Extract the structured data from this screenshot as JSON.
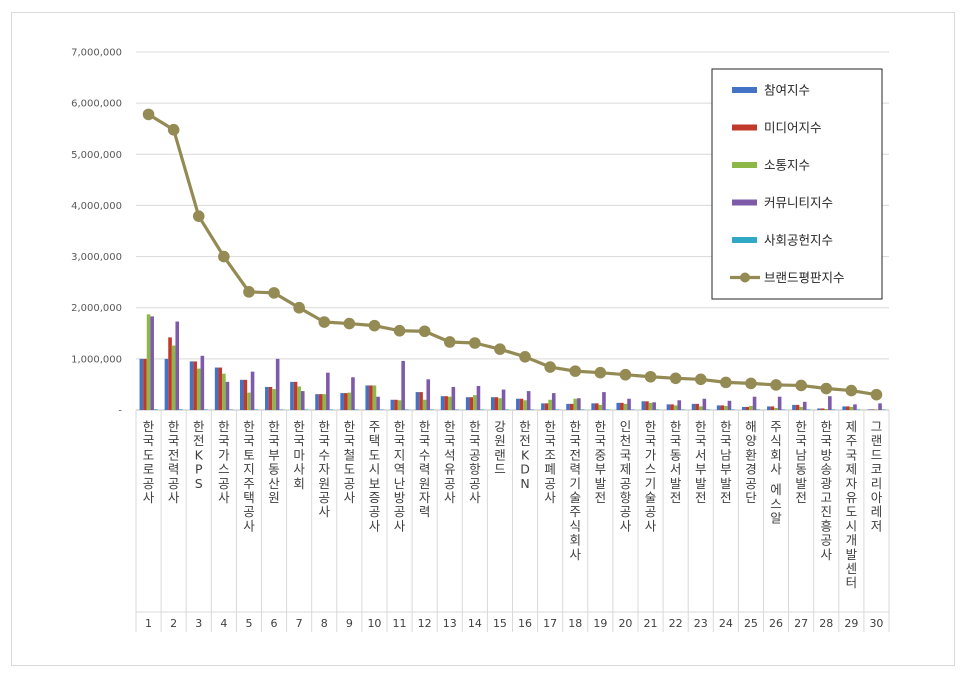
{
  "chart_data": {
    "type": "bar",
    "title": "",
    "xlabel": "",
    "ylabel": "",
    "ylim": [
      0,
      7000000
    ],
    "yticks": [
      "-",
      "1,000,000",
      "2,000,000",
      "3,000,000",
      "4,000,000",
      "5,000,000",
      "6,000,000",
      "7,000,000"
    ],
    "ytick_values": [
      0,
      1000000,
      2000000,
      3000000,
      4000000,
      5000000,
      6000000,
      7000000
    ],
    "grid": true,
    "legend_position": "top-right",
    "ranks": [
      "1",
      "2",
      "3",
      "4",
      "5",
      "6",
      "7",
      "8",
      "9",
      "10",
      "11",
      "12",
      "13",
      "14",
      "15",
      "16",
      "17",
      "18",
      "19",
      "20",
      "21",
      "22",
      "23",
      "24",
      "25",
      "26",
      "27",
      "28",
      "29",
      "30"
    ],
    "categories": [
      "한국도로공사",
      "한국전력공사",
      "한전KPS",
      "한국가스공사",
      "한국토지주택공사",
      "한국부동산원",
      "한국마사회",
      "한국수자원공사",
      "한국철도공사",
      "주택도시보증공사",
      "한국지역난방공사",
      "한국수력원자력",
      "한국석유공사",
      "한국공항공사",
      "강원랜드",
      "한전KDN",
      "한국조폐공사",
      "한국전력기술주식회사",
      "한국중부발전",
      "인천국제공항공사",
      "한국가스기술공사",
      "한국동서발전",
      "한국서부발전",
      "한국남부발전",
      "해양환경공단",
      "주식회사 에스알",
      "한국남동발전",
      "한국방송광고진흥공사",
      "제주국제자유도시개발센터",
      "그랜드코리아레저"
    ],
    "series": [
      {
        "name": "참여지수",
        "kind": "bar",
        "color": "#4472c4",
        "values": [
          1000000,
          1000000,
          950000,
          830000,
          590000,
          450000,
          550000,
          310000,
          330000,
          480000,
          200000,
          350000,
          270000,
          250000,
          250000,
          220000,
          130000,
          120000,
          130000,
          140000,
          170000,
          110000,
          120000,
          90000,
          60000,
          70000,
          100000,
          30000,
          70000,
          10000
        ]
      },
      {
        "name": "미디어지수",
        "kind": "bar",
        "color": "#c0392b",
        "values": [
          1000000,
          1420000,
          950000,
          830000,
          590000,
          450000,
          550000,
          310000,
          330000,
          480000,
          200000,
          350000,
          270000,
          250000,
          250000,
          220000,
          130000,
          120000,
          130000,
          140000,
          170000,
          110000,
          120000,
          90000,
          60000,
          70000,
          100000,
          30000,
          70000,
          10000
        ]
      },
      {
        "name": "소통지수",
        "kind": "bar",
        "color": "#8db848",
        "values": [
          1870000,
          1260000,
          810000,
          710000,
          340000,
          410000,
          460000,
          310000,
          340000,
          480000,
          190000,
          200000,
          260000,
          290000,
          230000,
          190000,
          200000,
          220000,
          100000,
          120000,
          140000,
          90000,
          70000,
          80000,
          80000,
          40000,
          60000,
          20000,
          60000,
          10000
        ]
      },
      {
        "name": "커뮤니티지수",
        "kind": "bar",
        "color": "#7e5ba8",
        "values": [
          1830000,
          1730000,
          1060000,
          550000,
          750000,
          1000000,
          370000,
          730000,
          640000,
          260000,
          960000,
          600000,
          450000,
          470000,
          400000,
          370000,
          330000,
          230000,
          350000,
          220000,
          150000,
          190000,
          220000,
          180000,
          260000,
          260000,
          160000,
          270000,
          110000,
          130000
        ]
      },
      {
        "name": "사회공헌지수",
        "kind": "bar",
        "color": "#31a9c6",
        "values": [
          15000,
          15000,
          12000,
          10000,
          12000,
          10000,
          10000,
          10000,
          10000,
          10000,
          10000,
          10000,
          10000,
          10000,
          10000,
          8000,
          8000,
          8000,
          8000,
          8000,
          8000,
          8000,
          8000,
          8000,
          8000,
          8000,
          8000,
          8000,
          8000,
          8000
        ]
      },
      {
        "name": "브랜드평판지수",
        "kind": "line",
        "color": "#948a54",
        "values": [
          5780000,
          5480000,
          3790000,
          3000000,
          2310000,
          2290000,
          2000000,
          1720000,
          1690000,
          1650000,
          1550000,
          1540000,
          1330000,
          1310000,
          1190000,
          1040000,
          840000,
          760000,
          730000,
          690000,
          650000,
          620000,
          600000,
          540000,
          520000,
          490000,
          480000,
          420000,
          380000,
          300000
        ]
      }
    ]
  }
}
